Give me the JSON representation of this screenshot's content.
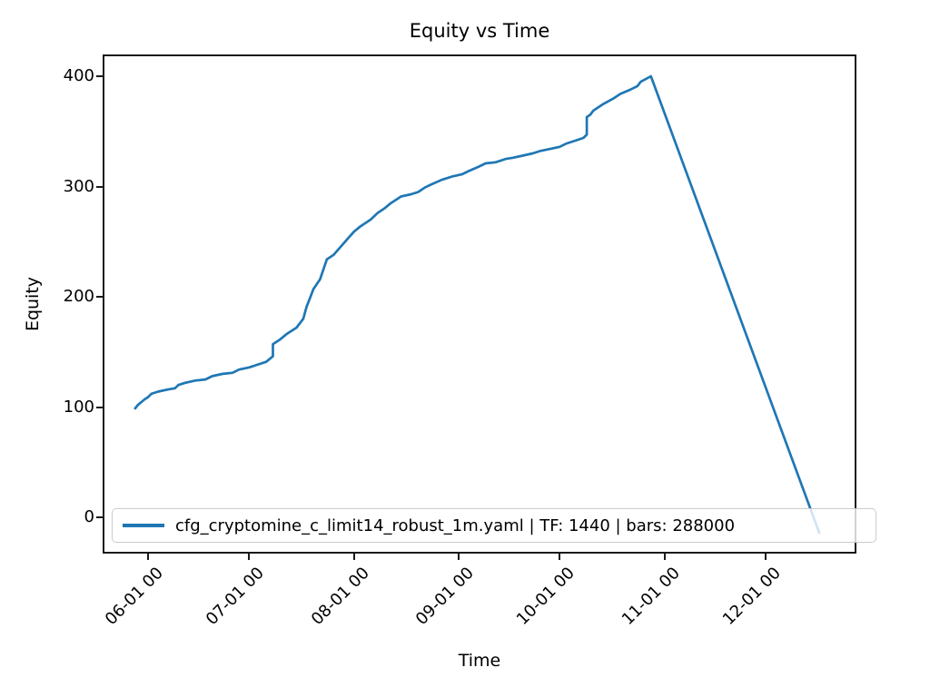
{
  "chart": {
    "title": "Equity vs Time",
    "x_axis_label": "Time",
    "y_axis_label": "Equity",
    "accent_color": "#1f77b4",
    "background_color": "#ffffff",
    "legend_label": "cfg_cryptomine_c_limit14_robust_1m.yaml | TF: 1440 | bars: 288000"
  },
  "chart_data": {
    "type": "line",
    "title": "Equity vs Time",
    "xlabel": "Time",
    "ylabel": "Equity",
    "grid": false,
    "ylim": [
      -33,
      420
    ],
    "xlim_dates": [
      "05-18",
      "12-28"
    ],
    "y_ticks": [
      0,
      100,
      200,
      300,
      400
    ],
    "x_ticks": [
      {
        "label": "06-01 00",
        "date": "06-01"
      },
      {
        "label": "07-01 00",
        "date": "07-01"
      },
      {
        "label": "08-01 00",
        "date": "08-01"
      },
      {
        "label": "09-01 00",
        "date": "09-01"
      },
      {
        "label": "10-01 00",
        "date": "10-01"
      },
      {
        "label": "11-01 00",
        "date": "11-01"
      },
      {
        "label": "12-01 00",
        "date": "12-01"
      }
    ],
    "legend": {
      "label": "cfg_cryptomine_c_limit14_robust_1m.yaml | TF: 1440 | bars: 288000",
      "position": "lower left"
    },
    "series": [
      {
        "name": "cfg_cryptomine_c_limit14_robust_1m.yaml | TF: 1440 | bars: 288000",
        "color": "#1f77b4",
        "line_width": 2.7,
        "points": [
          [
            "05-28",
            98
          ],
          [
            "05-29",
            102
          ],
          [
            "05-31",
            107
          ],
          [
            "06-01",
            109
          ],
          [
            "06-02",
            112
          ],
          [
            "06-04",
            114
          ],
          [
            "06-07",
            116
          ],
          [
            "06-09",
            117
          ],
          [
            "06-10",
            120
          ],
          [
            "06-12",
            122
          ],
          [
            "06-15",
            124
          ],
          [
            "06-18",
            125
          ],
          [
            "06-20",
            128
          ],
          [
            "06-23",
            130
          ],
          [
            "06-26",
            131
          ],
          [
            "06-28",
            134
          ],
          [
            "07-01",
            136
          ],
          [
            "07-04",
            139
          ],
          [
            "07-06",
            141
          ],
          [
            "07-08",
            146
          ],
          [
            "07-08",
            157
          ],
          [
            "07-10",
            161
          ],
          [
            "07-12",
            166
          ],
          [
            "07-15",
            172
          ],
          [
            "07-17",
            180
          ],
          [
            "07-18",
            191
          ],
          [
            "07-19",
            199
          ],
          [
            "07-20",
            207
          ],
          [
            "07-22",
            216
          ],
          [
            "07-23",
            225
          ],
          [
            "07-24",
            234
          ],
          [
            "07-26",
            238
          ],
          [
            "07-28",
            245
          ],
          [
            "07-30",
            252
          ],
          [
            "08-01",
            259
          ],
          [
            "08-03",
            264
          ],
          [
            "08-05",
            268
          ],
          [
            "08-06",
            270
          ],
          [
            "08-08",
            276
          ],
          [
            "08-10",
            280
          ],
          [
            "08-12",
            285
          ],
          [
            "08-14",
            289
          ],
          [
            "08-15",
            291
          ],
          [
            "08-18",
            293
          ],
          [
            "08-20",
            295
          ],
          [
            "08-22",
            299
          ],
          [
            "08-24",
            302
          ],
          [
            "08-27",
            306
          ],
          [
            "08-30",
            309
          ],
          [
            "09-02",
            311
          ],
          [
            "09-04",
            314
          ],
          [
            "09-07",
            318
          ],
          [
            "09-09",
            321
          ],
          [
            "09-12",
            322
          ],
          [
            "09-15",
            325
          ],
          [
            "09-17",
            326
          ],
          [
            "09-20",
            328
          ],
          [
            "09-23",
            330
          ],
          [
            "09-25",
            332
          ],
          [
            "09-28",
            334
          ],
          [
            "10-01",
            336
          ],
          [
            "10-03",
            339
          ],
          [
            "10-06",
            342
          ],
          [
            "10-08",
            344
          ],
          [
            "10-09",
            347
          ],
          [
            "10-09",
            363
          ],
          [
            "10-10",
            365
          ],
          [
            "10-11",
            369
          ],
          [
            "10-14",
            375
          ],
          [
            "10-17",
            380
          ],
          [
            "10-19",
            384
          ],
          [
            "10-22",
            388
          ],
          [
            "10-24",
            391
          ],
          [
            "10-25",
            395
          ],
          [
            "10-28",
            400
          ],
          [
            "12-17",
            -15
          ]
        ]
      }
    ]
  }
}
